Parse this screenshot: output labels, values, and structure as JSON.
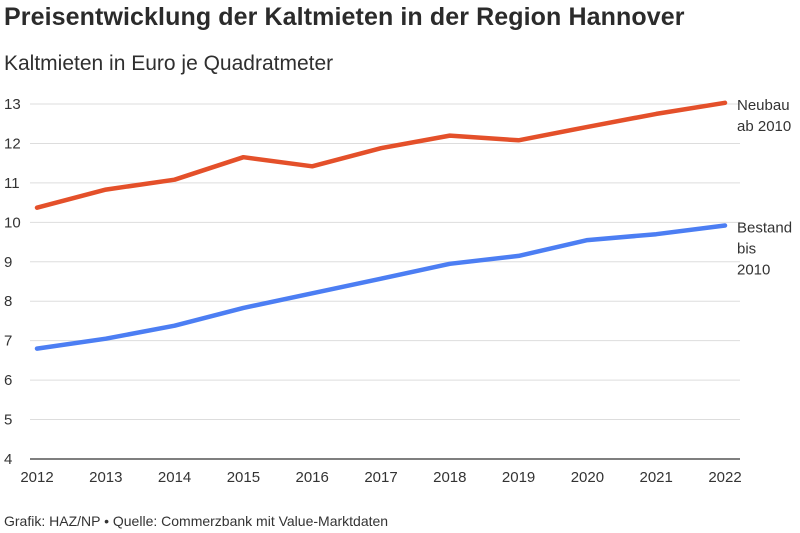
{
  "title": "Preisentwicklung der Kaltmieten in der Region Hannover",
  "subtitle": "Kaltmieten in Euro je Quadratmeter",
  "footer": "Grafik: HAZ/NP • Quelle: Commerzbank mit Value-Marktdaten",
  "colors": {
    "neubau": "#e4502a",
    "bestand": "#4c7ef3",
    "grid": "#dddddd",
    "baseline": "#333333"
  },
  "chart_data": {
    "type": "line",
    "x": [
      2012,
      2013,
      2014,
      2015,
      2016,
      2017,
      2018,
      2019,
      2020,
      2021,
      2022
    ],
    "ylim": [
      4,
      13
    ],
    "yticks": [
      4,
      5,
      6,
      7,
      8,
      9,
      10,
      11,
      12,
      13
    ],
    "grid": true,
    "series": [
      {
        "key": "neubau",
        "label_lines": [
          "Neubau",
          "ab 2010"
        ],
        "values": [
          10.37,
          10.83,
          11.08,
          11.65,
          11.42,
          11.88,
          12.2,
          12.08,
          12.42,
          12.75,
          13.03
        ]
      },
      {
        "key": "bestand",
        "label_lines": [
          "Bestand",
          "bis",
          "2010"
        ],
        "values": [
          6.8,
          7.05,
          7.38,
          7.83,
          8.2,
          8.57,
          8.95,
          9.15,
          9.55,
          9.7,
          9.92
        ]
      }
    ]
  }
}
